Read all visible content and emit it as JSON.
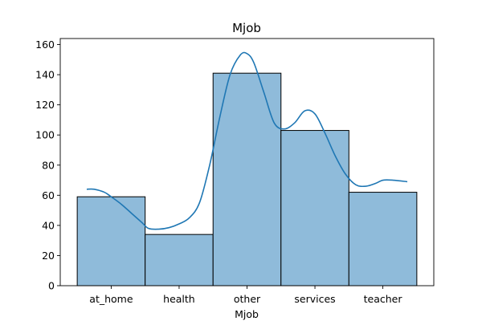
{
  "chart_data": {
    "type": "bar",
    "title": "Mjob",
    "xlabel": "Mjob",
    "ylabel": "",
    "categories": [
      "at_home",
      "health",
      "other",
      "services",
      "teacher"
    ],
    "values": [
      59,
      34,
      141,
      103,
      62
    ],
    "ylim": [
      0,
      164
    ],
    "yticks": [
      0,
      20,
      40,
      60,
      80,
      100,
      120,
      140,
      160
    ],
    "grid": false,
    "kde": {
      "x": [
        -0.36,
        -0.25,
        -0.1,
        0.0,
        0.15,
        0.3,
        0.45,
        0.55,
        0.7,
        0.85,
        1.0,
        1.15,
        1.3,
        1.45,
        1.6,
        1.75,
        1.9,
        2.0,
        2.1,
        2.25,
        2.4,
        2.55,
        2.7,
        2.85,
        3.0,
        3.15,
        3.3,
        3.45,
        3.6,
        3.75,
        3.9,
        4.0,
        4.15,
        4.36
      ],
      "y": [
        64,
        64,
        62,
        59,
        54,
        48,
        42,
        38,
        37.5,
        38.5,
        41,
        45,
        55,
        80,
        112,
        140,
        153,
        154,
        148,
        128,
        108,
        104,
        108,
        116,
        114,
        101,
        86,
        74,
        67,
        66,
        68,
        70,
        70,
        69
      ]
    },
    "colors": {
      "bar_fill": "#8fbbda",
      "bar_edge": "#000000",
      "kde_line": "#1f77b4"
    }
  }
}
